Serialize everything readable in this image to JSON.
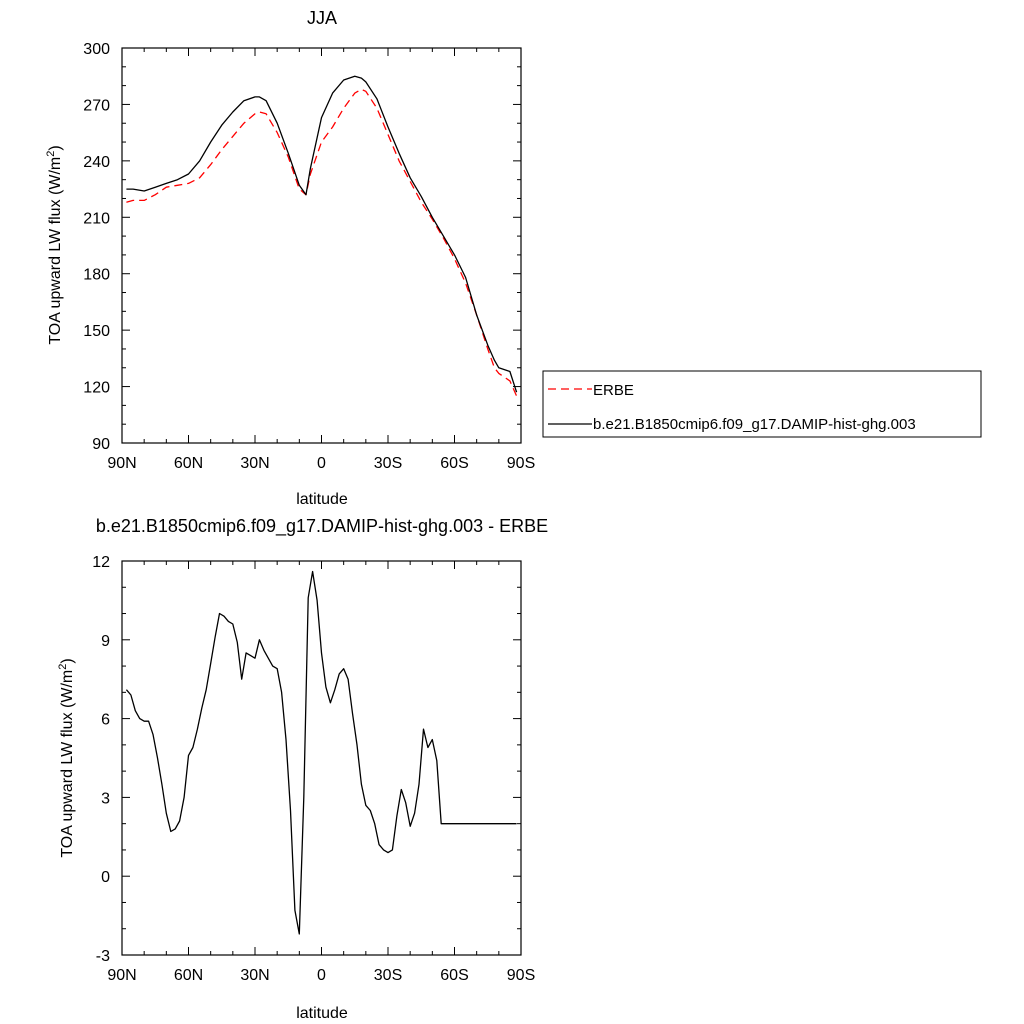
{
  "chart_data": [
    {
      "type": "line",
      "title": "JJA",
      "xlabel": "latitude",
      "ylabel": "TOA upward LW flux (W/m",
      "ylabel_superscript": "2",
      "ylabel_close": ")",
      "xlim": [
        90,
        -90
      ],
      "ylim": [
        90,
        300
      ],
      "x_ticks": [
        90,
        60,
        30,
        0,
        -30,
        -60,
        -90
      ],
      "x_tick_labels": [
        "90N",
        "60N",
        "30N",
        "0",
        "30S",
        "60S",
        "90S"
      ],
      "y_ticks": [
        90,
        120,
        150,
        180,
        210,
        240,
        270,
        300
      ],
      "y_tick_labels": [
        "90",
        "120",
        "150",
        "180",
        "210",
        "240",
        "270",
        "300"
      ],
      "legend_position": "right",
      "series": [
        {
          "name": "ERBE",
          "color": "#ff0000",
          "dash": "dashed",
          "x": [
            88,
            85,
            80,
            75,
            70,
            65,
            60,
            55,
            50,
            45,
            40,
            35,
            30,
            28,
            25,
            20,
            15,
            10,
            7,
            5,
            0,
            -5,
            -10,
            -15,
            -18,
            -20,
            -25,
            -30,
            -35,
            -40,
            -45,
            -50,
            -55,
            -60,
            -65,
            -70,
            -75,
            -78,
            -80,
            -85,
            -88
          ],
          "y": [
            218,
            219,
            219,
            222,
            226,
            227,
            228,
            231,
            238,
            246,
            253,
            260,
            265,
            266,
            265,
            255,
            242,
            225,
            222,
            233,
            250,
            258,
            268,
            276,
            278,
            277,
            268,
            254,
            240,
            229,
            218,
            209,
            199,
            188,
            175,
            158,
            140,
            130,
            127,
            123,
            115
          ]
        },
        {
          "name": "b.e21.B1850cmip6.f09_g17.DAMIP-hist-ghg.003",
          "color": "#000000",
          "dash": "solid",
          "x": [
            88,
            85,
            80,
            75,
            70,
            65,
            60,
            55,
            50,
            45,
            40,
            35,
            30,
            28,
            25,
            20,
            15,
            10,
            7,
            5,
            0,
            -5,
            -10,
            -15,
            -18,
            -20,
            -25,
            -30,
            -35,
            -40,
            -45,
            -50,
            -55,
            -60,
            -65,
            -70,
            -75,
            -78,
            -80,
            -85,
            -88
          ],
          "y": [
            225,
            225,
            224,
            226,
            228,
            230,
            233,
            240,
            250,
            259,
            266,
            272,
            274,
            274,
            272,
            260,
            244,
            227,
            222,
            236,
            263,
            276,
            283,
            285,
            284,
            282,
            273,
            258,
            244,
            231,
            221,
            210,
            200,
            190,
            178,
            158,
            142,
            134,
            130,
            128,
            117
          ]
        }
      ]
    },
    {
      "type": "line",
      "title": "b.e21.B1850cmip6.f09_g17.DAMIP-hist-ghg.003 - ERBE",
      "xlabel": "latitude",
      "ylabel": "TOA upward LW flux (W/m",
      "ylabel_superscript": "2",
      "ylabel_close": ")",
      "xlim": [
        90,
        -90
      ],
      "ylim": [
        -3,
        12
      ],
      "x_ticks": [
        90,
        60,
        30,
        0,
        -30,
        -60,
        -90
      ],
      "x_tick_labels": [
        "90N",
        "60N",
        "30N",
        "0",
        "30S",
        "60S",
        "90S"
      ],
      "y_ticks": [
        -3,
        0,
        3,
        6,
        9,
        12
      ],
      "y_tick_labels": [
        "-3",
        "0",
        "3",
        "6",
        "9",
        "12"
      ],
      "series": [
        {
          "color": "#000000",
          "dash": "solid",
          "x": [
            88,
            86,
            84,
            82,
            80,
            78,
            76,
            74,
            72,
            70,
            68,
            66,
            64,
            62,
            60,
            58,
            56,
            54,
            52,
            50,
            48,
            46,
            44,
            42,
            40,
            38,
            36,
            34,
            32,
            30,
            28,
            26,
            24,
            22,
            20,
            18,
            16,
            14,
            12,
            10,
            8,
            6,
            4,
            2,
            0,
            -2,
            -4,
            -6,
            -8,
            -10,
            -12,
            -14,
            -16,
            -18,
            -20,
            -22,
            -24,
            -26,
            -28,
            -30,
            -32,
            -34,
            -36,
            -38,
            -40,
            -42,
            -44,
            -46,
            -48,
            -50,
            -52,
            -54,
            -56,
            -58,
            -60,
            -62,
            -64,
            -66,
            -68,
            -70,
            -72,
            -74,
            -76,
            -78,
            -80,
            -82,
            -84,
            -86,
            -88
          ],
          "y": [
            7.1,
            6.9,
            6.3,
            6.0,
            5.9,
            5.9,
            5.4,
            4.5,
            3.5,
            2.4,
            1.7,
            1.8,
            2.1,
            3.0,
            4.6,
            4.9,
            5.6,
            6.4,
            7.1,
            8.1,
            9.1,
            10.0,
            9.9,
            9.7,
            9.6,
            8.9,
            7.5,
            8.5,
            8.4,
            8.3,
            9.0,
            8.6,
            8.3,
            8.0,
            7.9,
            7.0,
            5.2,
            2.5,
            -1.3,
            -2.2,
            3.0,
            10.6,
            11.6,
            10.5,
            8.5,
            7.2,
            6.6,
            7.1,
            7.7,
            7.9,
            7.5,
            6.2,
            5.0,
            3.5,
            2.7,
            2.5,
            2.0,
            1.2,
            1.0,
            0.9,
            1.0,
            2.3,
            3.3,
            2.8,
            1.9,
            2.4,
            3.5,
            5.6,
            4.9,
            5.2,
            4.4,
            2.0,
            2.0,
            2.0,
            2.0,
            2.0,
            2.0,
            2.0,
            2.0,
            2.0,
            2.0,
            2.0,
            2.0,
            2.0,
            2.0,
            2.0,
            2.0,
            2.0,
            2.0
          ]
        }
      ]
    }
  ]
}
